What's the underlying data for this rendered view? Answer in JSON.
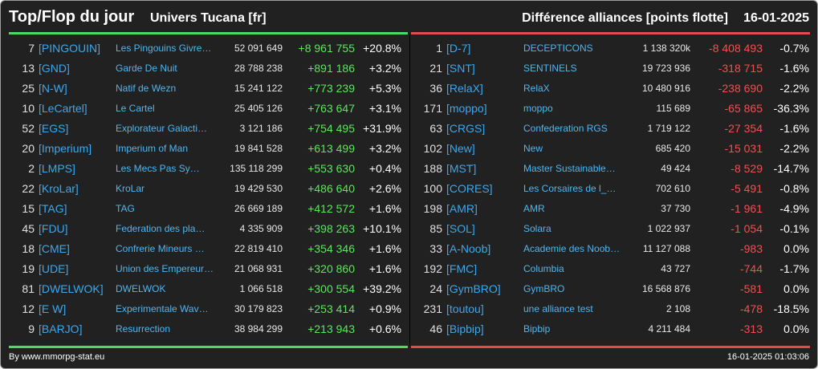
{
  "header": {
    "title": "Top/Flop du jour",
    "universe": "Univers Tucana [fr]",
    "subtitle": "Différence alliances [points flotte]",
    "date": "16-01-2025"
  },
  "colors": {
    "positive": "#5ce65c",
    "negative": "#f05050",
    "tag": "#3aa8ee",
    "background": "#212121"
  },
  "top": [
    {
      "rank": "7",
      "tag": "[PINGOUIN]",
      "name": "Les Pingouins Givre…",
      "points": "52 091 649",
      "delta": "+8 961 755",
      "pct": "+20.8%"
    },
    {
      "rank": "13",
      "tag": "[GND]",
      "name": "Garde De Nuit",
      "points": "28 788 238",
      "delta": "+891 186",
      "pct": "+3.2%"
    },
    {
      "rank": "25",
      "tag": "[N-W]",
      "name": "Natif de Wezn",
      "points": "15 241 122",
      "delta": "+773 239",
      "pct": "+5.3%"
    },
    {
      "rank": "10",
      "tag": "[LeCartel]",
      "name": "Le Cartel",
      "points": "25 405 126",
      "delta": "+763 647",
      "pct": "+3.1%"
    },
    {
      "rank": "52",
      "tag": "[EGS]",
      "name": "Explorateur Galacti…",
      "points": "3 121 186",
      "delta": "+754 495",
      "pct": "+31.9%"
    },
    {
      "rank": "20",
      "tag": "[Imperium]",
      "name": "Imperium of Man",
      "points": "19 841 528",
      "delta": "+613 499",
      "pct": "+3.2%"
    },
    {
      "rank": "2",
      "tag": "[LMPS]",
      "name": "Les Mecs Pas Sy…",
      "points": "135 118 299",
      "delta": "+553 630",
      "pct": "+0.4%"
    },
    {
      "rank": "22",
      "tag": "[KroLar]",
      "name": "KroLar",
      "points": "19 429 530",
      "delta": "+486 640",
      "pct": "+2.6%"
    },
    {
      "rank": "15",
      "tag": "[TAG]",
      "name": "TAG",
      "points": "26 669 189",
      "delta": "+412 572",
      "pct": "+1.6%"
    },
    {
      "rank": "45",
      "tag": "[FDU]",
      "name": "Federation des pla…",
      "points": "4 335 909",
      "delta": "+398 263",
      "pct": "+10.1%"
    },
    {
      "rank": "18",
      "tag": "[CME]",
      "name": "Confrerie Mineurs …",
      "points": "22 819 410",
      "delta": "+354 346",
      "pct": "+1.6%"
    },
    {
      "rank": "19",
      "tag": "[UDE]",
      "name": "Union des Empereur…",
      "points": "21 068 931",
      "delta": "+320 860",
      "pct": "+1.6%"
    },
    {
      "rank": "81",
      "tag": "[DWELWOK]",
      "name": "DWELWOK",
      "points": "1 066 518",
      "delta": "+300 554",
      "pct": "+39.2%"
    },
    {
      "rank": "12",
      "tag": "[E W]",
      "name": "Experimentale Wav…",
      "points": "30 179 823",
      "delta": "+253 414",
      "pct": "+0.9%"
    },
    {
      "rank": "9",
      "tag": "[BARJO]",
      "name": "Resurrection",
      "points": "38 984 299",
      "delta": "+213 943",
      "pct": "+0.6%"
    }
  ],
  "flop": [
    {
      "rank": "1",
      "tag": "[D-7]",
      "name": "DECEPTICONS",
      "points": "1 138 320k",
      "delta": "-8 408 493",
      "pct": "-0.7%"
    },
    {
      "rank": "21",
      "tag": "[SNT]",
      "name": "SENTINELS",
      "points": "19 723 936",
      "delta": "-318 715",
      "pct": "-1.6%"
    },
    {
      "rank": "36",
      "tag": "[RelaX]",
      "name": "RelaX",
      "points": "10 480 916",
      "delta": "-238 690",
      "pct": "-2.2%"
    },
    {
      "rank": "171",
      "tag": "[moppo]",
      "name": "moppo",
      "points": "115 689",
      "delta": "-65 865",
      "pct": "-36.3%"
    },
    {
      "rank": "63",
      "tag": "[CRGS]",
      "name": "Confederation RGS",
      "points": "1 719 122",
      "delta": "-27 354",
      "pct": "-1.6%"
    },
    {
      "rank": "102",
      "tag": "[New]",
      "name": "New",
      "points": "685 420",
      "delta": "-15 031",
      "pct": "-2.2%"
    },
    {
      "rank": "188",
      "tag": "[MST]",
      "name": "Master Sustainable…",
      "points": "49 424",
      "delta": "-8 529",
      "pct": "-14.7%"
    },
    {
      "rank": "100",
      "tag": "[CORES]",
      "name": "Les Corsaires de l_…",
      "points": "702 610",
      "delta": "-5 491",
      "pct": "-0.8%"
    },
    {
      "rank": "198",
      "tag": "[AMR]",
      "name": "AMR",
      "points": "37 730",
      "delta": "-1 961",
      "pct": "-4.9%"
    },
    {
      "rank": "85",
      "tag": "[SOL]",
      "name": "Solara",
      "points": "1 022 937",
      "delta": "-1 054",
      "pct": "-0.1%"
    },
    {
      "rank": "33",
      "tag": "[A-Noob]",
      "name": "Academie des Noob…",
      "points": "11 127 088",
      "delta": "-983",
      "pct": "0.0%"
    },
    {
      "rank": "192",
      "tag": "[FMC]",
      "name": "Columbia",
      "points": "43 727",
      "delta": "-744",
      "pct": "-1.7%"
    },
    {
      "rank": "24",
      "tag": "[GymBRO]",
      "name": "GymBRO",
      "points": "16 568 876",
      "delta": "-581",
      "pct": "0.0%"
    },
    {
      "rank": "231",
      "tag": "[toutou]",
      "name": "une alliance test",
      "points": "2 108",
      "delta": "-478",
      "pct": "-18.5%"
    },
    {
      "rank": "46",
      "tag": "[Bipbip]",
      "name": "Bipbip",
      "points": "4 211 484",
      "delta": "-313",
      "pct": "0.0%"
    }
  ],
  "footer": {
    "source": "By www.mmorpg-stat.eu",
    "timestamp": "16-01-2025 01:03:06"
  }
}
